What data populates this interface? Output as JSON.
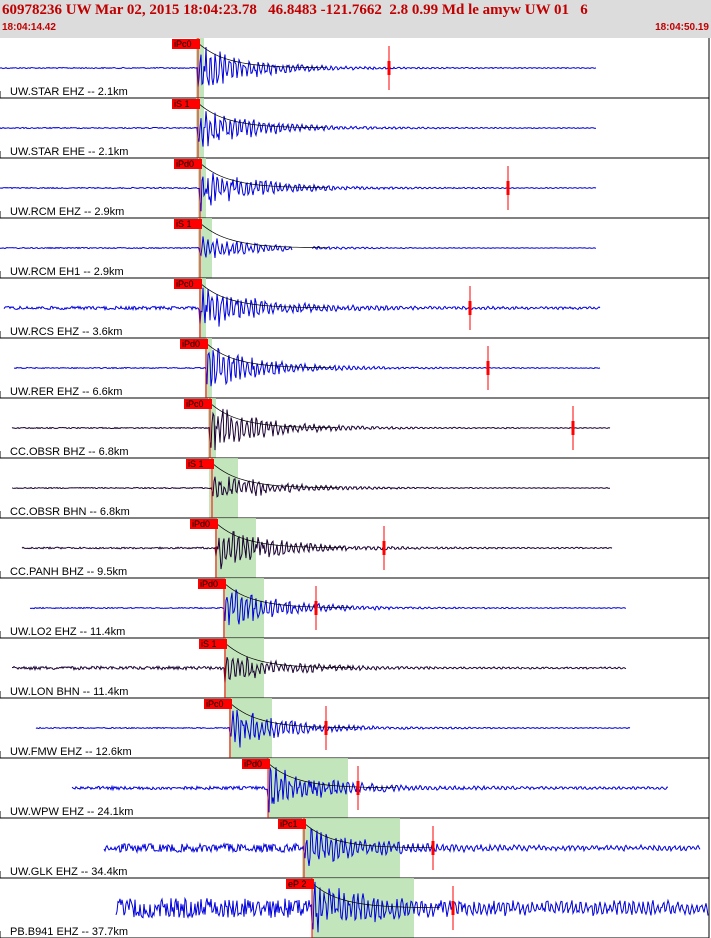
{
  "header": {
    "title": "60978236 UW Mar 02, 2015 18:04:23.78   46.8483 -121.7662  2.8 0.99 Md le amyw UW 01   6",
    "time_start": "18:04:14.42",
    "time_end": "18:04:50.19"
  },
  "colors": {
    "background": "#ffffff",
    "header_bg": "#dcdcdc",
    "header_text": "#c00000",
    "trace_blue": "#0000dd",
    "trace_dark": "#1a0033",
    "pick_red": "#ff0000",
    "window_green": "#b8e0b0",
    "decay_curve": "#000000"
  },
  "traces": [
    {
      "label": "UW.STAR EHZ -- 2.1km",
      "pick": "iPc0",
      "color": "blue",
      "start": 0,
      "pIdx": 198,
      "end": 596,
      "amp": 0.9,
      "noise": 0.02,
      "green": [
        196,
        204
      ],
      "marker": 389,
      "gap": null
    },
    {
      "label": "UW.STAR EHE -- 2.1km",
      "pick": "iS 1",
      "color": "blue",
      "start": 0,
      "pIdx": 198,
      "end": 596,
      "amp": 0.9,
      "noise": 0.02,
      "green": [
        196,
        204
      ],
      "marker": null,
      "gap": null
    },
    {
      "label": "UW.RCM EHZ -- 2.9km",
      "pick": "iPd0",
      "color": "blue",
      "start": 0,
      "pIdx": 200,
      "end": 596,
      "amp": 0.9,
      "noise": 0.02,
      "green": [
        198,
        206
      ],
      "marker": 508,
      "gap": null
    },
    {
      "label": "UW.RCM EH1 -- 2.9km",
      "pick": "iS 1",
      "color": "blue",
      "start": 0,
      "pIdx": 200,
      "end": 596,
      "amp": 0.5,
      "noise": 0.02,
      "green": [
        198,
        212
      ],
      "marker": null,
      "gap": [
        292,
        312
      ]
    },
    {
      "label": "UW.RCS EHZ -- 3.6km",
      "pick": "iPc0",
      "color": "blue",
      "start": 4,
      "pIdx": 200,
      "end": 600,
      "amp": 0.9,
      "noise": 0.06,
      "green": [
        199,
        206
      ],
      "marker": 470,
      "gap": null
    },
    {
      "label": "UW.RER EHZ -- 6.6km",
      "pick": "iPd0",
      "color": "blue",
      "start": 14,
      "pIdx": 206,
      "end": 600,
      "amp": 0.9,
      "noise": 0.02,
      "green": [
        205,
        212
      ],
      "marker": 488,
      "gap": null
    },
    {
      "label": "CC.OBSR BHZ -- 6.8km",
      "pick": "iPc0",
      "color": "dark",
      "start": 12,
      "pIdx": 210,
      "end": 610,
      "amp": 0.9,
      "noise": 0.02,
      "green": [
        208,
        216
      ],
      "marker": 573,
      "gap": null
    },
    {
      "label": "CC.OBSR BHN -- 6.8km",
      "pick": "iS 1",
      "color": "dark",
      "start": 12,
      "pIdx": 212,
      "end": 610,
      "amp": 0.7,
      "noise": 0.02,
      "green": [
        209,
        238
      ],
      "marker": null,
      "gap": null
    },
    {
      "label": "CC.PANH BHZ -- 9.5km",
      "pick": "iPd0",
      "color": "dark",
      "start": 22,
      "pIdx": 216,
      "end": 612,
      "amp": 0.9,
      "noise": 0.03,
      "green": [
        215,
        256
      ],
      "marker": 384,
      "gap": null
    },
    {
      "label": "UW.LO2 EHZ -- 11.4km",
      "pick": "iPd0",
      "color": "blue",
      "start": 30,
      "pIdx": 224,
      "end": 626,
      "amp": 0.9,
      "noise": 0.02,
      "green": [
        223,
        264
      ],
      "marker": 316,
      "gap": null
    },
    {
      "label": "UW.LON BHN -- 11.4km",
      "pick": "iS 1",
      "color": "dark",
      "start": 12,
      "pIdx": 225,
      "end": 626,
      "amp": 0.6,
      "noise": 0.06,
      "green": [
        224,
        264
      ],
      "marker": null,
      "gap": null
    },
    {
      "label": "UW.FMW EHZ -- 12.6km",
      "pick": "iPc0",
      "color": "blue",
      "start": 36,
      "pIdx": 230,
      "end": 630,
      "amp": 0.9,
      "noise": 0.02,
      "green": [
        229,
        272
      ],
      "marker": 326,
      "gap": null
    },
    {
      "label": "UW.WPW EHZ -- 24.1km",
      "pick": "iPd0",
      "color": "blue",
      "start": 72,
      "pIdx": 268,
      "end": 668,
      "amp": 0.9,
      "noise": 0.06,
      "green": [
        268,
        348
      ],
      "marker": 358,
      "gap": null
    },
    {
      "label": "UW.GLK EHZ -- 34.4km",
      "pick": "iPc1",
      "color": "blue",
      "start": 104,
      "pIdx": 304,
      "end": 700,
      "amp": 0.7,
      "noise": 0.15,
      "green": [
        302,
        400
      ],
      "marker": 433,
      "gap": null
    },
    {
      "label": "PB.B941 EHZ -- 37.7km",
      "pick": "eP 2",
      "color": "blue",
      "start": 116,
      "pIdx": 312,
      "end": 708,
      "amp": 0.8,
      "noise": 0.35,
      "green": [
        312,
        414
      ],
      "marker": 453,
      "gap": null
    }
  ]
}
